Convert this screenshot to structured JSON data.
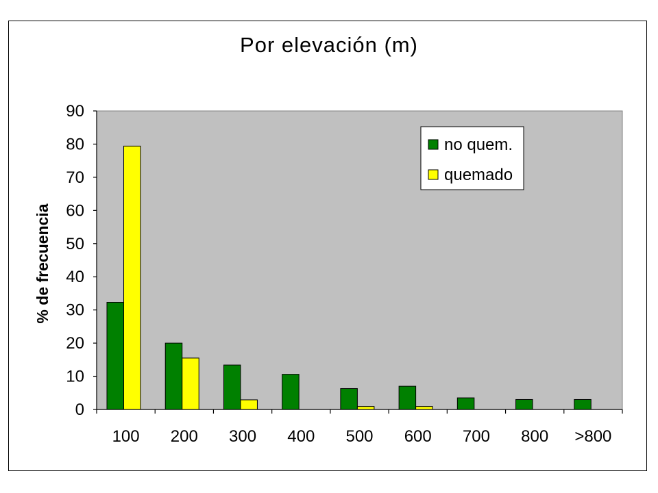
{
  "chart_data": {
    "type": "bar",
    "title": "Por elevación (m)",
    "xlabel": "",
    "ylabel": "% de frecuencia",
    "categories": [
      "100",
      "200",
      "300",
      "400",
      "500",
      "600",
      "700",
      "800",
      ">800"
    ],
    "series": [
      {
        "name": "no quem.",
        "color": "#008000",
        "values": [
          32.3,
          20.0,
          13.4,
          10.6,
          6.3,
          7.0,
          3.5,
          3.0,
          3.0
        ]
      },
      {
        "name": "quemado",
        "color": "#ffff00",
        "values": [
          79.4,
          15.5,
          2.9,
          0,
          0.9,
          0.9,
          0,
          0,
          0
        ]
      }
    ],
    "ylim": [
      0,
      90
    ],
    "yticks": [
      0,
      10,
      20,
      30,
      40,
      50,
      60,
      70,
      80,
      90
    ],
    "plot_background": "#c0c0c0",
    "grid": false,
    "legend_position": "top-right"
  }
}
